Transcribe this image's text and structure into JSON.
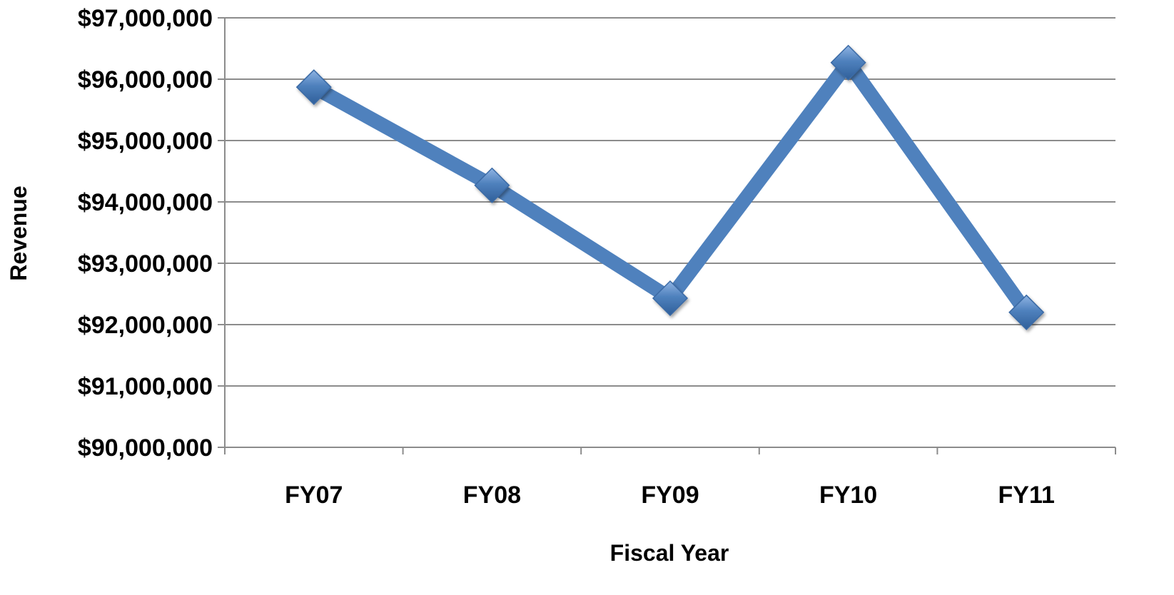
{
  "chart_data": {
    "type": "line",
    "title": "",
    "xlabel": "Fiscal Year",
    "ylabel": "Revenue",
    "categories": [
      "FY07",
      "FY08",
      "FY09",
      "FY10",
      "FY11"
    ],
    "series": [
      {
        "values": [
          95870000,
          94270000,
          92430000,
          96270000,
          92200000
        ]
      }
    ],
    "ylim": [
      90000000,
      97000000
    ],
    "y_ticks": [
      90000000,
      91000000,
      92000000,
      93000000,
      94000000,
      95000000,
      96000000,
      97000000
    ],
    "y_tick_labels": [
      "$90,000,000",
      "$91,000,000",
      "$92,000,000",
      "$93,000,000",
      "$94,000,000",
      "$95,000,000",
      "$96,000,000",
      "$97,000,000"
    ],
    "grid": true,
    "legend": "none",
    "marker": "diamond",
    "colors": {
      "line": "#4f81bd",
      "marker": "#4a7ebb",
      "grid": "#8c8c8c",
      "axis": "#8c8c8c",
      "text": "#000000"
    }
  }
}
